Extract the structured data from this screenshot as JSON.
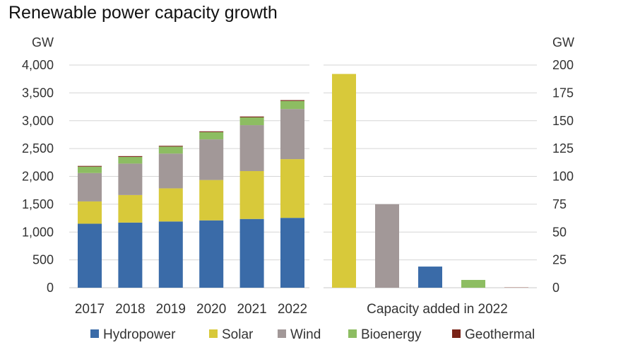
{
  "title": "Renewable power capacity growth",
  "colors": {
    "Hydropower": "#3a6ba8",
    "Solar": "#d8c93a",
    "Wind": "#a29898",
    "Bioenergy": "#8dbd62",
    "Geothermal": "#7a2418",
    "grid": "#d6d6d6",
    "axis": "#c8c8c8"
  },
  "chart_data": [
    {
      "type": "bar",
      "stacked": true,
      "categories": [
        "2017",
        "2018",
        "2019",
        "2020",
        "2021",
        "2022"
      ],
      "series": [
        {
          "name": "Hydropower",
          "values": [
            1150,
            1170,
            1190,
            1210,
            1235,
            1255
          ]
        },
        {
          "name": "Solar",
          "values": [
            400,
            495,
            595,
            725,
            860,
            1055
          ]
        },
        {
          "name": "Wind",
          "values": [
            510,
            565,
            625,
            730,
            825,
            900
          ]
        },
        {
          "name": "Bioenergy",
          "values": [
            115,
            120,
            125,
            130,
            140,
            145
          ]
        },
        {
          "name": "Geothermal",
          "values": [
            13,
            14,
            14,
            14,
            15,
            15
          ]
        }
      ],
      "yunit": "GW",
      "ylim": [
        0,
        4000
      ],
      "yticks": [
        0,
        500,
        1000,
        1500,
        2000,
        2500,
        3000,
        3500,
        4000
      ],
      "ytick_labels": [
        "0",
        "500",
        "1,000",
        "1,500",
        "2,000",
        "2,500",
        "3,000",
        "3,500",
        "4,000"
      ],
      "grid": true
    },
    {
      "type": "bar",
      "stacked": false,
      "xlabel": "Capacity added in 2022",
      "categories": [
        "Solar",
        "Wind",
        "Hydropower",
        "Bioenergy",
        "Geothermal"
      ],
      "values": [
        192,
        75,
        19,
        7,
        0.2
      ],
      "yunit": "GW",
      "ylim": [
        0,
        200
      ],
      "yticks": [
        0,
        25,
        50,
        75,
        100,
        125,
        150,
        175,
        200
      ],
      "ytick_labels": [
        "0",
        "25",
        "50",
        "75",
        "100",
        "125",
        "150",
        "175",
        "200"
      ],
      "grid": true
    }
  ],
  "legend": {
    "position": "bottom",
    "items": [
      "Hydropower",
      "Solar",
      "Wind",
      "Bioenergy",
      "Geothermal"
    ]
  }
}
